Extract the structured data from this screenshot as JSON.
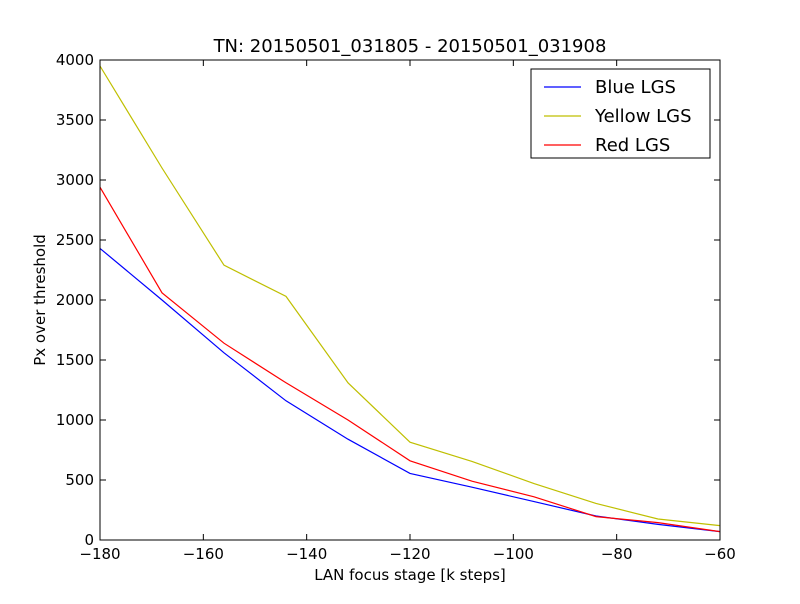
{
  "chart_data": {
    "type": "line",
    "title": "TN: 20150501_031805 - 20150501_031908",
    "xlabel": "LAN focus stage [k steps]",
    "ylabel": "Px over threshold",
    "xlim": [
      -180,
      -60
    ],
    "ylim": [
      0,
      4000
    ],
    "xticks": [
      -180,
      -160,
      -140,
      -120,
      -100,
      -80,
      -60
    ],
    "yticks": [
      0,
      500,
      1000,
      1500,
      2000,
      2500,
      3000,
      3500,
      4000
    ],
    "x": [
      -180,
      -168,
      -156,
      -144,
      -132,
      -120,
      -108,
      -96,
      -84,
      -72,
      -60
    ],
    "series": [
      {
        "name": "Blue LGS",
        "color": "#0000ff",
        "values": [
          2430,
          2000,
          1560,
          1160,
          840,
          555,
          440,
          320,
          200,
          130,
          70
        ]
      },
      {
        "name": "Yellow LGS",
        "color": "#bfbf00",
        "values": [
          3950,
          3100,
          2290,
          2030,
          1310,
          815,
          655,
          470,
          305,
          175,
          120
        ]
      },
      {
        "name": "Red LGS",
        "color": "#ff0000",
        "values": [
          2940,
          2060,
          1640,
          1310,
          1000,
          660,
          490,
          360,
          195,
          145,
          70
        ]
      }
    ],
    "grid": false,
    "legend_position": "top-right"
  }
}
